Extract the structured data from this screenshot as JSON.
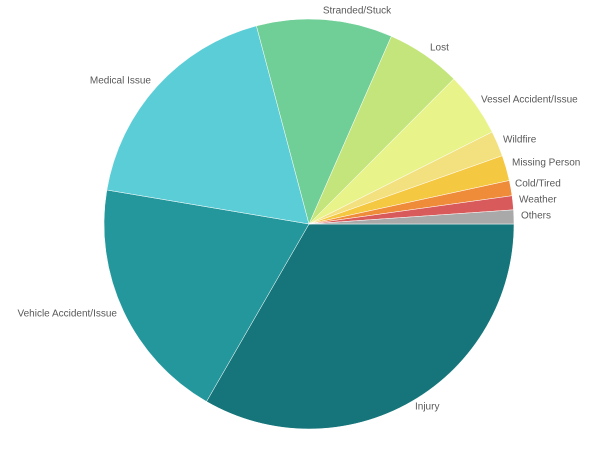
{
  "chart_data": {
    "type": "pie",
    "categories": [
      "Injury",
      "Vehicle Accident/Issue",
      "Medical Issue",
      "Stranded/Stuck",
      "Lost",
      "Vessel Accident/Issue",
      "Wildfire",
      "Missing Person",
      "Cold/Tired",
      "Weather",
      "Others"
    ],
    "values": [
      33.3,
      19.3,
      18.2,
      10.7,
      5.9,
      5.1,
      2,
      2,
      1.2,
      1.1,
      1.1
    ],
    "colors": [
      "#15757a",
      "#23979b",
      "#5bcdd7",
      "#6fcf97",
      "#c4e57c",
      "#e8f38a",
      "#f3e07f",
      "#f5c842",
      "#ef8c3a",
      "#d95a5a",
      "#a9a9a9"
    ]
  }
}
